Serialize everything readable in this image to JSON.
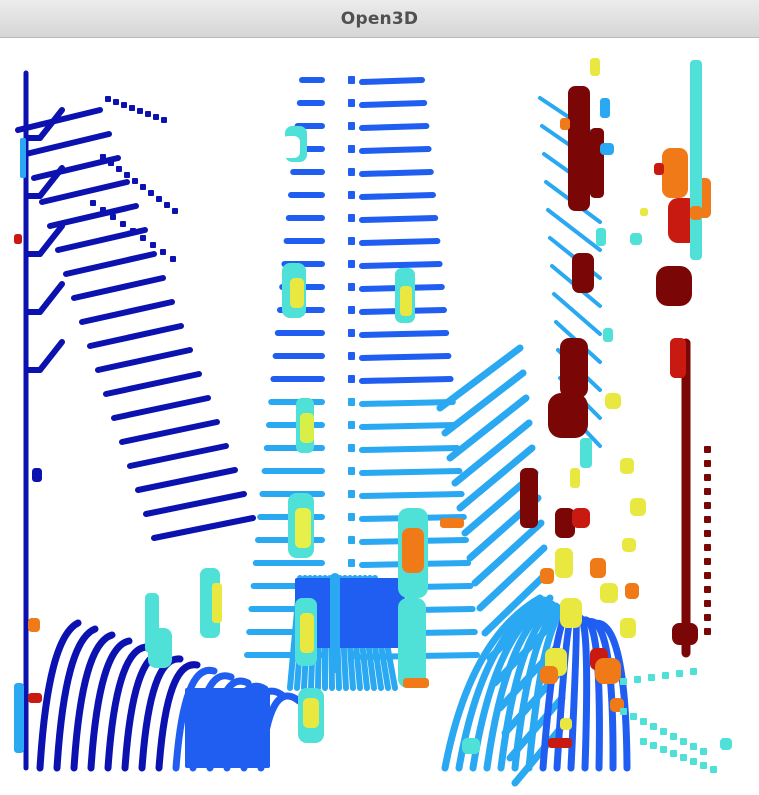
{
  "window": {
    "title": "Open3D"
  },
  "viewport": {
    "background": "#ffffff",
    "colormap": "jet",
    "colors": {
      "deep_blue": "#0b12b0",
      "blue": "#1f5ef0",
      "sky": "#2aa8f2",
      "cyan": "#4fe0d8",
      "yellow": "#e8e840",
      "orange": "#f07a18",
      "red": "#c81a10",
      "dark_red": "#7a0606"
    }
  }
}
